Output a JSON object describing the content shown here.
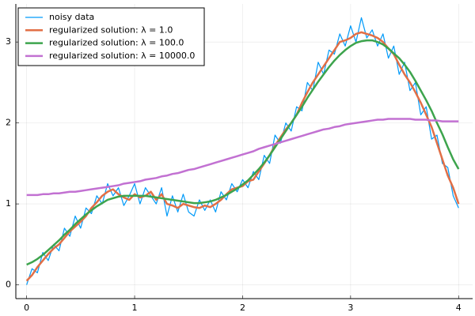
{
  "chart_data": {
    "type": "line",
    "x": [
      0,
      0.05,
      0.1,
      0.15,
      0.2,
      0.25,
      0.3,
      0.35,
      0.4,
      0.45,
      0.5,
      0.55,
      0.6,
      0.65,
      0.7,
      0.75,
      0.8,
      0.85,
      0.9,
      0.95,
      1,
      1.05,
      1.1,
      1.15,
      1.2,
      1.25,
      1.3,
      1.35,
      1.4,
      1.45,
      1.5,
      1.55,
      1.6,
      1.65,
      1.7,
      1.75,
      1.8,
      1.85,
      1.9,
      1.95,
      2,
      2.05,
      2.1,
      2.15,
      2.2,
      2.25,
      2.3,
      2.35,
      2.4,
      2.45,
      2.5,
      2.55,
      2.6,
      2.65,
      2.7,
      2.75,
      2.8,
      2.85,
      2.9,
      2.95,
      3,
      3.05,
      3.1,
      3.15,
      3.2,
      3.25,
      3.3,
      3.35,
      3.4,
      3.45,
      3.5,
      3.55,
      3.6,
      3.65,
      3.7,
      3.75,
      3.8,
      3.85,
      3.9,
      3.95,
      4
    ],
    "series": [
      {
        "name": "noisy data",
        "color": "#009af9",
        "width": 1.2,
        "values": [
          0.0,
          0.2,
          0.15,
          0.4,
          0.3,
          0.5,
          0.42,
          0.7,
          0.6,
          0.85,
          0.7,
          0.95,
          0.88,
          1.1,
          1.0,
          1.25,
          1.1,
          1.2,
          0.98,
          1.1,
          1.25,
          1.0,
          1.2,
          1.1,
          1.0,
          1.2,
          0.85,
          1.1,
          0.9,
          1.12,
          0.9,
          0.85,
          1.05,
          0.92,
          1.05,
          0.9,
          1.15,
          1.05,
          1.25,
          1.15,
          1.3,
          1.2,
          1.4,
          1.3,
          1.6,
          1.5,
          1.85,
          1.75,
          2.0,
          1.9,
          2.2,
          2.15,
          2.5,
          2.4,
          2.75,
          2.6,
          2.9,
          2.85,
          3.1,
          2.95,
          3.2,
          3.0,
          3.3,
          3.05,
          3.15,
          2.95,
          3.1,
          2.8,
          2.95,
          2.6,
          2.75,
          2.4,
          2.5,
          2.1,
          2.2,
          1.8,
          1.85,
          1.5,
          1.45,
          1.1,
          0.95
        ]
      },
      {
        "name": "regularized solution: λ = 1.0",
        "color": "#e26f46",
        "width": 2.5,
        "values": [
          0.05,
          0.12,
          0.22,
          0.3,
          0.38,
          0.45,
          0.5,
          0.58,
          0.66,
          0.72,
          0.78,
          0.85,
          0.95,
          1.02,
          1.1,
          1.15,
          1.18,
          1.12,
          1.08,
          1.05,
          1.12,
          1.08,
          1.1,
          1.15,
          1.05,
          1.12,
          1.0,
          0.98,
          0.95,
          1.0,
          0.98,
          0.96,
          0.95,
          0.98,
          0.96,
          1.0,
          1.05,
          1.12,
          1.18,
          1.2,
          1.22,
          1.28,
          1.3,
          1.4,
          1.5,
          1.6,
          1.72,
          1.82,
          1.92,
          2.0,
          2.1,
          2.25,
          2.38,
          2.5,
          2.6,
          2.7,
          2.8,
          2.9,
          3.0,
          3.02,
          3.05,
          3.1,
          3.12,
          3.1,
          3.08,
          3.05,
          3.0,
          2.92,
          2.85,
          2.72,
          2.6,
          2.5,
          2.38,
          2.25,
          2.1,
          1.95,
          1.75,
          1.55,
          1.35,
          1.2,
          1.0
        ]
      },
      {
        "name": "regularized solution: λ = 100.0",
        "color": "#3da44d",
        "width": 2.5,
        "values": [
          0.25,
          0.28,
          0.32,
          0.37,
          0.43,
          0.49,
          0.55,
          0.62,
          0.68,
          0.75,
          0.81,
          0.87,
          0.92,
          0.97,
          1.01,
          1.05,
          1.07,
          1.09,
          1.1,
          1.1,
          1.1,
          1.1,
          1.1,
          1.09,
          1.08,
          1.07,
          1.06,
          1.05,
          1.04,
          1.03,
          1.02,
          1.01,
          1.01,
          1.02,
          1.03,
          1.05,
          1.08,
          1.11,
          1.15,
          1.19,
          1.24,
          1.29,
          1.36,
          1.43,
          1.51,
          1.6,
          1.7,
          1.8,
          1.9,
          2.0,
          2.1,
          2.2,
          2.31,
          2.41,
          2.51,
          2.6,
          2.69,
          2.77,
          2.84,
          2.9,
          2.95,
          2.99,
          3.01,
          3.02,
          3.02,
          3.0,
          2.97,
          2.92,
          2.86,
          2.8,
          2.72,
          2.63,
          2.52,
          2.4,
          2.28,
          2.15,
          2.0,
          1.86,
          1.7,
          1.55,
          1.43
        ]
      },
      {
        "name": "regularized solution: λ = 10000.0",
        "color": "#c271d2",
        "width": 2.5,
        "values": [
          1.11,
          1.11,
          1.11,
          1.12,
          1.12,
          1.13,
          1.13,
          1.14,
          1.15,
          1.15,
          1.16,
          1.17,
          1.18,
          1.19,
          1.2,
          1.21,
          1.22,
          1.23,
          1.25,
          1.26,
          1.27,
          1.28,
          1.3,
          1.31,
          1.32,
          1.34,
          1.35,
          1.37,
          1.38,
          1.4,
          1.42,
          1.43,
          1.45,
          1.47,
          1.49,
          1.51,
          1.53,
          1.55,
          1.57,
          1.59,
          1.61,
          1.63,
          1.65,
          1.68,
          1.7,
          1.72,
          1.74,
          1.76,
          1.78,
          1.8,
          1.82,
          1.84,
          1.86,
          1.88,
          1.9,
          1.92,
          1.93,
          1.95,
          1.96,
          1.98,
          1.99,
          2.0,
          2.01,
          2.02,
          2.03,
          2.04,
          2.04,
          2.05,
          2.05,
          2.05,
          2.05,
          2.05,
          2.04,
          2.04,
          2.04,
          2.03,
          2.03,
          2.02,
          2.02,
          2.02,
          2.02
        ]
      }
    ],
    "xlim": [
      -0.1,
      4.13
    ],
    "ylim": [
      -0.17,
      3.47
    ],
    "xticks": [
      0,
      1,
      2,
      3,
      4
    ],
    "yticks": [
      0,
      1,
      2,
      3
    ],
    "grid": true,
    "legend": "top-left"
  }
}
